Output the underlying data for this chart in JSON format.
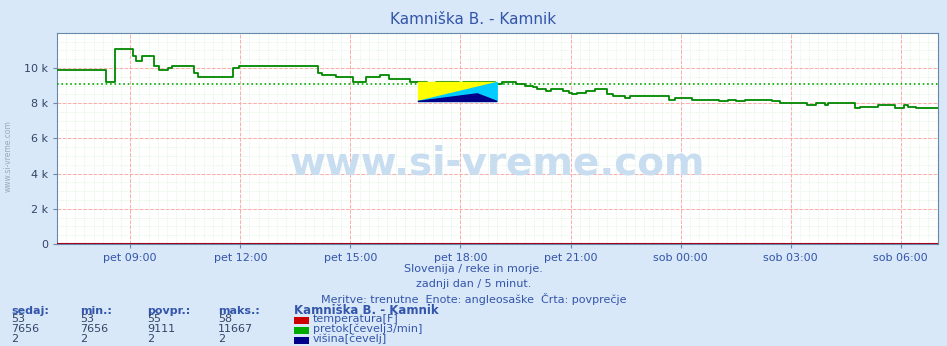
{
  "title": "Kamniška B. - Kamnik",
  "bg_color": "#d8e8f8",
  "plot_bg_color": "#ffffff",
  "grid_color_red": "#ffaaaa",
  "grid_color_green": "#cceecc",
  "x_labels": [
    "pet 09:00",
    "pet 12:00",
    "pet 15:00",
    "pet 18:00",
    "pet 21:00",
    "sob 00:00",
    "sob 03:00",
    "sob 06:00"
  ],
  "x_ticks_norm": [
    0.0833,
    0.2083,
    0.3333,
    0.4583,
    0.5833,
    0.7083,
    0.8333,
    0.9583
  ],
  "y_ticks": [
    0,
    2000,
    4000,
    6000,
    8000,
    10000
  ],
  "y_labels": [
    "0",
    "2 k",
    "4 k",
    "6 k",
    "8 k",
    "10 k"
  ],
  "ylim": [
    0,
    12000
  ],
  "avg_line": 9111,
  "subtitle1": "Slovenija / reke in morje.",
  "subtitle2": "zadnji dan / 5 minut.",
  "subtitle3": "Meritve: trenutne  Enote: angleosaške  Črta: povprečje",
  "table_headers": [
    "sedaj:",
    "min.:",
    "povpr.:",
    "maks.:"
  ],
  "station_label": "Kamniška B. - Kamnik",
  "rows": [
    {
      "sedaj": "53",
      "min": "53",
      "povpr": "55",
      "maks": "58",
      "label": "temperatura[F]",
      "color": "#cc0000"
    },
    {
      "sedaj": "7656",
      "min": "7656",
      "povpr": "9111",
      "maks": "11667",
      "label": "pretok[čevelj3/min]",
      "color": "#00aa00"
    },
    {
      "sedaj": "2",
      "min": "2",
      "povpr": "2",
      "maks": "2",
      "label": "višina[čevelj]",
      "color": "#000088"
    }
  ],
  "flow_color": "#008800",
  "temp_color": "#cc0000",
  "height_color": "#000088",
  "watermark": "www.si-vreme.com",
  "watermark_color": "#c8ddf0",
  "watermark_fontsize": 28,
  "logo_y": "#ffff00",
  "logo_c": "#00ccff",
  "logo_b": "#000088",
  "left_text": "www.si-vreme.com",
  "title_color": "#3355aa",
  "label_color": "#3355aa",
  "tick_color": "#3355aa",
  "data_color": "#334466"
}
